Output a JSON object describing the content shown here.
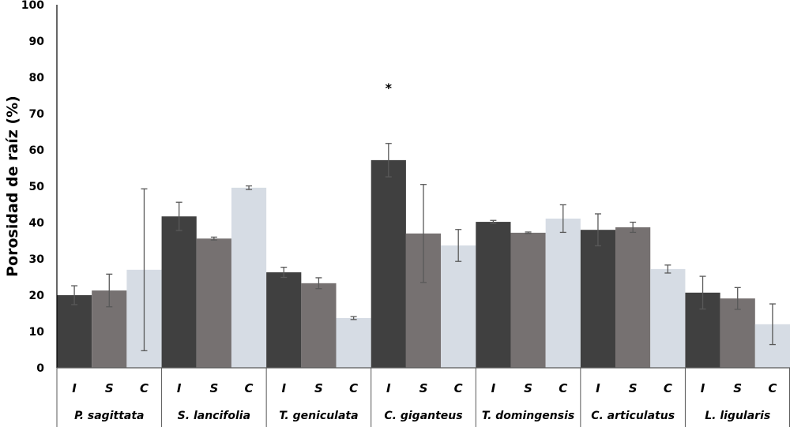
{
  "chart_data": {
    "type": "bar",
    "ylabel": "Porosidad de raíz (%)",
    "ylim": [
      0,
      100
    ],
    "yticks": [
      0,
      10,
      20,
      30,
      40,
      50,
      60,
      70,
      80,
      90,
      100
    ],
    "grid": false,
    "groups": [
      "P. sagittata",
      "S. lancifolia",
      "T. geniculata",
      "C. giganteus",
      "T. domingensis",
      "C. articulatus",
      "L. ligularis"
    ],
    "subcategories": [
      "I",
      "S",
      "C"
    ],
    "colors": {
      "I": "#404040",
      "S": "#767171",
      "C": "#d6dce4"
    },
    "series": [
      {
        "values": [
          20.0,
          41.7,
          26.3,
          57.2,
          40.2,
          38.0,
          20.7
        ],
        "errors": [
          2.6,
          3.9,
          1.4,
          4.6,
          0.4,
          4.4,
          4.5
        ]
      },
      {
        "values": [
          21.3,
          35.6,
          23.3,
          37.0,
          37.2,
          38.7,
          19.1
        ],
        "errors": [
          4.5,
          0.4,
          1.5,
          13.5,
          0.2,
          1.4,
          3.0
        ]
      },
      {
        "values": [
          27.0,
          49.6,
          13.7,
          33.7,
          41.1,
          27.2,
          12.0
        ],
        "errors": [
          22.3,
          0.5,
          0.4,
          4.4,
          3.8,
          1.1,
          5.6
        ]
      }
    ],
    "annotations": [
      {
        "text": "*",
        "group": "C. giganteus",
        "sub": "I",
        "y": 78
      }
    ]
  }
}
